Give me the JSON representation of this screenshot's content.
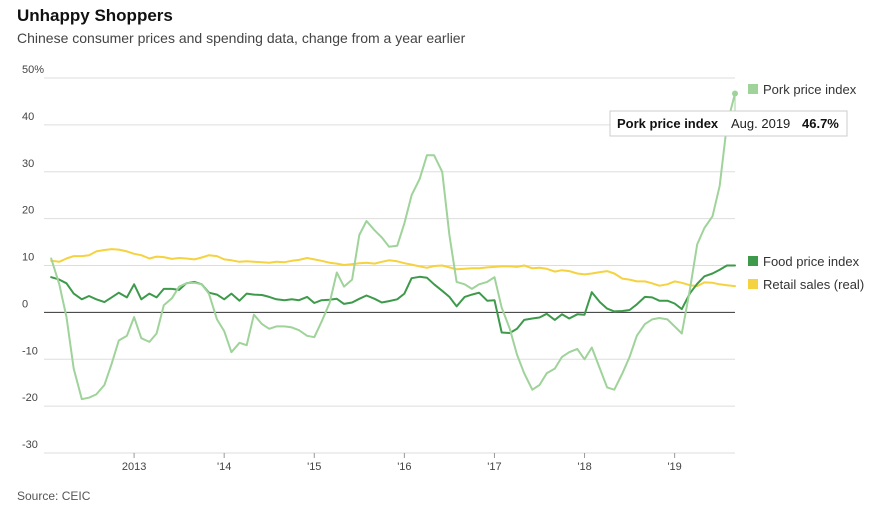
{
  "header": {
    "title": "Unhappy Shoppers",
    "subtitle": "Chinese consumer prices and spending data, change from a year earlier"
  },
  "footer": {
    "source": "Source: CEIC"
  },
  "colors": {
    "pork": "#9fd39a",
    "food": "#3d9a4b",
    "retail": "#f5d23f",
    "grid": "#dddddd",
    "zero": "#333333"
  },
  "tooltip": {
    "series": "Pork price index",
    "date": "Aug. 2019",
    "value": "46.7%"
  },
  "chart_data": {
    "type": "line",
    "ylim": [
      -30,
      50
    ],
    "yticks": [
      -30,
      -20,
      -10,
      0,
      10,
      20,
      30,
      40,
      50
    ],
    "ytick_labels": [
      "-30",
      "-20",
      "-10",
      "0",
      "10",
      "20",
      "30",
      "40",
      "50%"
    ],
    "xlim": [
      2012.0,
      2019.67
    ],
    "xticks": [
      {
        "value": 2013,
        "label": "2013"
      },
      {
        "value": 2014,
        "label": "'14"
      },
      {
        "value": 2015,
        "label": "'15"
      },
      {
        "value": 2016,
        "label": "'16"
      },
      {
        "value": 2017,
        "label": "'17"
      },
      {
        "value": 2018,
        "label": "'18"
      },
      {
        "value": 2019,
        "label": "'19"
      }
    ],
    "series": [
      {
        "name": "Pork price index",
        "color": "#9fd39a",
        "legend": "right-top",
        "points": [
          [
            2012.08,
            11.5
          ],
          [
            2012.17,
            6
          ],
          [
            2012.25,
            -1
          ],
          [
            2012.33,
            -12
          ],
          [
            2012.42,
            -18.5
          ],
          [
            2012.5,
            -18.2
          ],
          [
            2012.58,
            -17.5
          ],
          [
            2012.67,
            -15.5
          ],
          [
            2012.75,
            -11
          ],
          [
            2012.83,
            -6
          ],
          [
            2012.92,
            -5
          ],
          [
            2013.0,
            -1
          ],
          [
            2013.08,
            -5.5
          ],
          [
            2013.17,
            -6.3
          ],
          [
            2013.25,
            -4.5
          ],
          [
            2013.33,
            1.5
          ],
          [
            2013.42,
            3
          ],
          [
            2013.5,
            5.5
          ],
          [
            2013.58,
            6.2
          ],
          [
            2013.67,
            6.3
          ],
          [
            2013.75,
            6
          ],
          [
            2013.83,
            4
          ],
          [
            2013.92,
            -1.5
          ],
          [
            2014.0,
            -4
          ],
          [
            2014.08,
            -8.5
          ],
          [
            2014.17,
            -6.5
          ],
          [
            2014.25,
            -7
          ],
          [
            2014.33,
            -0.5
          ],
          [
            2014.42,
            -2.5
          ],
          [
            2014.5,
            -3.5
          ],
          [
            2014.58,
            -3
          ],
          [
            2014.67,
            -3
          ],
          [
            2014.75,
            -3.2
          ],
          [
            2014.83,
            -3.8
          ],
          [
            2014.92,
            -5
          ],
          [
            2015.0,
            -5.3
          ],
          [
            2015.08,
            -2
          ],
          [
            2015.17,
            2
          ],
          [
            2015.25,
            8.5
          ],
          [
            2015.33,
            5.5
          ],
          [
            2015.42,
            7
          ],
          [
            2015.5,
            16.5
          ],
          [
            2015.58,
            19.5
          ],
          [
            2015.67,
            17.5
          ],
          [
            2015.75,
            16
          ],
          [
            2015.83,
            14
          ],
          [
            2015.92,
            14.2
          ],
          [
            2016.0,
            19
          ],
          [
            2016.08,
            25
          ],
          [
            2016.17,
            28.5
          ],
          [
            2016.25,
            33.5
          ],
          [
            2016.33,
            33.5
          ],
          [
            2016.42,
            30
          ],
          [
            2016.5,
            16.5
          ],
          [
            2016.58,
            6.5
          ],
          [
            2016.67,
            6
          ],
          [
            2016.75,
            5
          ],
          [
            2016.83,
            6
          ],
          [
            2016.92,
            6.5
          ],
          [
            2017.0,
            7.5
          ],
          [
            2017.08,
            1
          ],
          [
            2017.17,
            -3.5
          ],
          [
            2017.25,
            -9
          ],
          [
            2017.33,
            -13
          ],
          [
            2017.42,
            -16.5
          ],
          [
            2017.5,
            -15.5
          ],
          [
            2017.58,
            -13
          ],
          [
            2017.67,
            -12
          ],
          [
            2017.75,
            -9.5
          ],
          [
            2017.83,
            -8.5
          ],
          [
            2017.92,
            -7.8
          ],
          [
            2018.0,
            -10
          ],
          [
            2018.08,
            -7.5
          ],
          [
            2018.17,
            -12
          ],
          [
            2018.25,
            -16
          ],
          [
            2018.33,
            -16.5
          ],
          [
            2018.42,
            -13
          ],
          [
            2018.5,
            -9.5
          ],
          [
            2018.58,
            -5
          ],
          [
            2018.67,
            -2.5
          ],
          [
            2018.75,
            -1.5
          ],
          [
            2018.83,
            -1.2
          ],
          [
            2018.92,
            -1.5
          ],
          [
            2019.0,
            -3
          ],
          [
            2019.08,
            -4.5
          ],
          [
            2019.17,
            5
          ],
          [
            2019.25,
            14.5
          ],
          [
            2019.33,
            18
          ],
          [
            2019.42,
            20.5
          ],
          [
            2019.5,
            27
          ],
          [
            2019.58,
            40
          ],
          [
            2019.67,
            46.7
          ]
        ]
      },
      {
        "name": "Food price index",
        "color": "#3d9a4b",
        "legend": "right-middle",
        "points": [
          [
            2012.08,
            7.5
          ],
          [
            2012.17,
            7
          ],
          [
            2012.25,
            6.2
          ],
          [
            2012.33,
            4
          ],
          [
            2012.42,
            2.8
          ],
          [
            2012.5,
            3.5
          ],
          [
            2012.58,
            2.8
          ],
          [
            2012.67,
            2.2
          ],
          [
            2012.75,
            3.2
          ],
          [
            2012.83,
            4.2
          ],
          [
            2012.92,
            3.2
          ],
          [
            2013.0,
            6
          ],
          [
            2013.08,
            2.8
          ],
          [
            2013.17,
            4
          ],
          [
            2013.25,
            3.2
          ],
          [
            2013.33,
            5
          ],
          [
            2013.42,
            5
          ],
          [
            2013.5,
            4.8
          ],
          [
            2013.58,
            6.2
          ],
          [
            2013.67,
            6.5
          ],
          [
            2013.75,
            6
          ],
          [
            2013.83,
            4.2
          ],
          [
            2013.92,
            3.8
          ],
          [
            2014.0,
            2.8
          ],
          [
            2014.08,
            4
          ],
          [
            2014.17,
            2.5
          ],
          [
            2014.25,
            4
          ],
          [
            2014.33,
            3.8
          ],
          [
            2014.42,
            3.7
          ],
          [
            2014.5,
            3.3
          ],
          [
            2014.58,
            2.8
          ],
          [
            2014.67,
            2.6
          ],
          [
            2014.75,
            2.8
          ],
          [
            2014.83,
            2.6
          ],
          [
            2014.92,
            3.3
          ],
          [
            2015.0,
            2
          ],
          [
            2015.08,
            2.6
          ],
          [
            2015.17,
            2.7
          ],
          [
            2015.25,
            2.9
          ],
          [
            2015.33,
            1.8
          ],
          [
            2015.42,
            2.1
          ],
          [
            2015.5,
            2.9
          ],
          [
            2015.58,
            3.6
          ],
          [
            2015.67,
            2.9
          ],
          [
            2015.75,
            2.1
          ],
          [
            2015.83,
            2.4
          ],
          [
            2015.92,
            2.8
          ],
          [
            2016.0,
            4
          ],
          [
            2016.08,
            7.3
          ],
          [
            2016.17,
            7.6
          ],
          [
            2016.25,
            7.4
          ],
          [
            2016.33,
            6
          ],
          [
            2016.42,
            4.6
          ],
          [
            2016.5,
            3.3
          ],
          [
            2016.58,
            1.3
          ],
          [
            2016.67,
            3.3
          ],
          [
            2016.75,
            3.8
          ],
          [
            2016.83,
            4.2
          ],
          [
            2016.92,
            2.5
          ],
          [
            2017.0,
            2.6
          ],
          [
            2017.08,
            -4.3
          ],
          [
            2017.17,
            -4.4
          ],
          [
            2017.25,
            -3.5
          ],
          [
            2017.33,
            -1.6
          ],
          [
            2017.42,
            -1.3
          ],
          [
            2017.5,
            -1.1
          ],
          [
            2017.58,
            -0.3
          ],
          [
            2017.67,
            -1.6
          ],
          [
            2017.75,
            -0.4
          ],
          [
            2017.83,
            -1.3
          ],
          [
            2017.92,
            -0.4
          ],
          [
            2018.0,
            -0.5
          ],
          [
            2018.08,
            4.3
          ],
          [
            2018.17,
            2.2
          ],
          [
            2018.25,
            0.8
          ],
          [
            2018.33,
            0.2
          ],
          [
            2018.42,
            0.3
          ],
          [
            2018.5,
            0.5
          ],
          [
            2018.58,
            1.7
          ],
          [
            2018.67,
            3.3
          ],
          [
            2018.75,
            3.2
          ],
          [
            2018.83,
            2.5
          ],
          [
            2018.92,
            2.5
          ],
          [
            2019.0,
            1.9
          ],
          [
            2019.08,
            0.7
          ],
          [
            2019.17,
            4.1
          ],
          [
            2019.25,
            6.1
          ],
          [
            2019.33,
            7.7
          ],
          [
            2019.42,
            8.3
          ],
          [
            2019.5,
            9.1
          ],
          [
            2019.58,
            10
          ],
          [
            2019.67,
            10
          ]
        ]
      },
      {
        "name": "Retail sales (real)",
        "color": "#f5d23f",
        "legend": "right-middle",
        "points": [
          [
            2012.08,
            11
          ],
          [
            2012.17,
            10.8
          ],
          [
            2012.25,
            11.5
          ],
          [
            2012.33,
            12
          ],
          [
            2012.42,
            12
          ],
          [
            2012.5,
            12.2
          ],
          [
            2012.58,
            13
          ],
          [
            2012.67,
            13.3
          ],
          [
            2012.75,
            13.5
          ],
          [
            2012.83,
            13.4
          ],
          [
            2012.92,
            13
          ],
          [
            2013.0,
            12.5
          ],
          [
            2013.08,
            12.2
          ],
          [
            2013.17,
            11.5
          ],
          [
            2013.25,
            11.9
          ],
          [
            2013.33,
            11.8
          ],
          [
            2013.42,
            11.4
          ],
          [
            2013.5,
            11.6
          ],
          [
            2013.58,
            11.5
          ],
          [
            2013.67,
            11.3
          ],
          [
            2013.75,
            11.7
          ],
          [
            2013.83,
            12.2
          ],
          [
            2013.92,
            12
          ],
          [
            2014.0,
            11.3
          ],
          [
            2014.08,
            11.1
          ],
          [
            2014.17,
            10.8
          ],
          [
            2014.25,
            10.9
          ],
          [
            2014.33,
            10.8
          ],
          [
            2014.42,
            10.7
          ],
          [
            2014.5,
            10.6
          ],
          [
            2014.58,
            10.8
          ],
          [
            2014.67,
            10.7
          ],
          [
            2014.75,
            11
          ],
          [
            2014.83,
            11.2
          ],
          [
            2014.92,
            11.6
          ],
          [
            2015.0,
            11.3
          ],
          [
            2015.08,
            11
          ],
          [
            2015.17,
            10.6
          ],
          [
            2015.25,
            10.4
          ],
          [
            2015.33,
            10.1
          ],
          [
            2015.42,
            10.3
          ],
          [
            2015.5,
            10.5
          ],
          [
            2015.58,
            10.6
          ],
          [
            2015.67,
            10.4
          ],
          [
            2015.75,
            10.8
          ],
          [
            2015.83,
            11.1
          ],
          [
            2015.92,
            10.9
          ],
          [
            2016.0,
            10.5
          ],
          [
            2016.08,
            10.2
          ],
          [
            2016.17,
            9.8
          ],
          [
            2016.25,
            9.5
          ],
          [
            2016.33,
            9.9
          ],
          [
            2016.42,
            10
          ],
          [
            2016.5,
            9.6
          ],
          [
            2016.58,
            9.2
          ],
          [
            2016.67,
            9.3
          ],
          [
            2016.75,
            9.4
          ],
          [
            2016.83,
            9.4
          ],
          [
            2016.92,
            9.6
          ],
          [
            2017.0,
            9.7
          ],
          [
            2017.08,
            9.8
          ],
          [
            2017.17,
            9.8
          ],
          [
            2017.25,
            9.7
          ],
          [
            2017.33,
            10
          ],
          [
            2017.42,
            9.4
          ],
          [
            2017.5,
            9.5
          ],
          [
            2017.58,
            9.3
          ],
          [
            2017.67,
            8.7
          ],
          [
            2017.75,
            9
          ],
          [
            2017.83,
            8.8
          ],
          [
            2017.92,
            8.3
          ],
          [
            2018.0,
            8.1
          ],
          [
            2018.08,
            8.3
          ],
          [
            2018.17,
            8.6
          ],
          [
            2018.25,
            8.8
          ],
          [
            2018.33,
            8.3
          ],
          [
            2018.42,
            7.2
          ],
          [
            2018.5,
            7
          ],
          [
            2018.58,
            6.6
          ],
          [
            2018.67,
            6.6
          ],
          [
            2018.75,
            6.2
          ],
          [
            2018.83,
            5.7
          ],
          [
            2018.92,
            6
          ],
          [
            2019.0,
            6.6
          ],
          [
            2019.08,
            6.3
          ],
          [
            2019.17,
            5.8
          ],
          [
            2019.25,
            5.6
          ],
          [
            2019.33,
            6.4
          ],
          [
            2019.42,
            6.3
          ],
          [
            2019.5,
            6
          ],
          [
            2019.58,
            5.8
          ],
          [
            2019.67,
            5.6
          ]
        ]
      }
    ]
  }
}
